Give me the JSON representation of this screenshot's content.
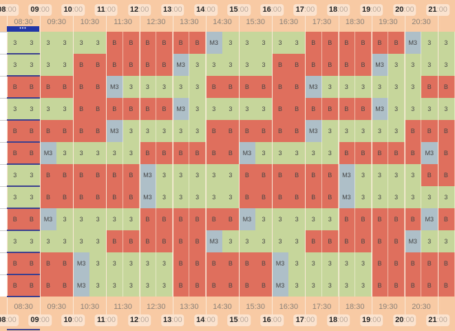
{
  "colors": {
    "3": "#c6d69b",
    "B": "#df6f5d",
    "M3": "#aebfc8",
    "header": "#f8caa4"
  },
  "hours": [
    {
      "h": "08",
      "m": ":00"
    },
    {
      "h": "09",
      "m": ":00"
    },
    {
      "h": "10",
      "m": ":00"
    },
    {
      "h": "11",
      "m": ":00"
    },
    {
      "h": "12",
      "m": ":00"
    },
    {
      "h": "13",
      "m": ":00"
    },
    {
      "h": "14",
      "m": ":00"
    },
    {
      "h": "15",
      "m": ":00"
    },
    {
      "h": "16",
      "m": ":00"
    },
    {
      "h": "17",
      "m": ":00"
    },
    {
      "h": "18",
      "m": ":00"
    },
    {
      "h": "19",
      "m": ":00"
    },
    {
      "h": "20",
      "m": ":00"
    },
    {
      "h": "21",
      "m": ":00"
    }
  ],
  "half_hours": [
    "08:30",
    "09:30",
    "10:30",
    "11:30",
    "12:30",
    "13:30",
    "14:30",
    "15:30",
    "16:30",
    "17:30",
    "18:30",
    "19:30",
    "20:30"
  ],
  "selection_marker": "•••",
  "rows": [
    [
      "3",
      "3",
      "3",
      "3",
      "3",
      "3",
      "B",
      "B",
      "B",
      "B",
      "B",
      "B",
      "M3",
      "3",
      "3",
      "3",
      "3",
      "3",
      "B",
      "B",
      "B",
      "B",
      "B",
      "B",
      "M3",
      "3",
      "3"
    ],
    [
      "3",
      "3",
      "3",
      "3",
      "B",
      "B",
      "B",
      "B",
      "B",
      "B",
      "M3",
      "3",
      "3",
      "3",
      "3",
      "3",
      "B",
      "B",
      "B",
      "B",
      "B",
      "B",
      "M3",
      "3",
      "3",
      "3",
      "3"
    ],
    [
      "B",
      "B",
      "B",
      "B",
      "B",
      "B",
      "M3",
      "3",
      "3",
      "3",
      "3",
      "3",
      "B",
      "B",
      "B",
      "B",
      "B",
      "B",
      "M3",
      "3",
      "3",
      "3",
      "3",
      "3",
      "3",
      "B",
      "B"
    ],
    [
      "3",
      "3",
      "3",
      "3",
      "B",
      "B",
      "B",
      "B",
      "B",
      "B",
      "M3",
      "3",
      "3",
      "3",
      "3",
      "3",
      "B",
      "B",
      "B",
      "B",
      "B",
      "B",
      "M3",
      "3",
      "3",
      "3",
      "3"
    ],
    [
      "B",
      "B",
      "B",
      "B",
      "B",
      "B",
      "M3",
      "3",
      "3",
      "3",
      "3",
      "3",
      "B",
      "B",
      "B",
      "B",
      "B",
      "B",
      "M3",
      "3",
      "3",
      "3",
      "3",
      "3",
      "B",
      "B",
      "B"
    ],
    [
      "B",
      "B",
      "M3",
      "3",
      "3",
      "3",
      "3",
      "3",
      "B",
      "B",
      "B",
      "B",
      "B",
      "B",
      "M3",
      "3",
      "3",
      "3",
      "3",
      "3",
      "B",
      "B",
      "B",
      "B",
      "B",
      "M3",
      "B"
    ],
    [
      "3",
      "3",
      "B",
      "B",
      "B",
      "B",
      "B",
      "B",
      "M3",
      "3",
      "3",
      "3",
      "3",
      "3",
      "B",
      "B",
      "B",
      "B",
      "B",
      "B",
      "M3",
      "3",
      "3",
      "3",
      "3",
      "B",
      "B"
    ],
    [
      "3",
      "3",
      "B",
      "B",
      "B",
      "B",
      "B",
      "B",
      "M3",
      "3",
      "3",
      "3",
      "3",
      "3",
      "B",
      "B",
      "B",
      "B",
      "B",
      "B",
      "M3",
      "3",
      "3",
      "3",
      "3",
      "3",
      "3"
    ],
    [
      "B",
      "B",
      "M3",
      "3",
      "3",
      "3",
      "3",
      "3",
      "B",
      "B",
      "B",
      "B",
      "B",
      "B",
      "M3",
      "3",
      "3",
      "3",
      "3",
      "3",
      "B",
      "B",
      "B",
      "B",
      "B",
      "M3",
      "B"
    ],
    [
      "3",
      "3",
      "3",
      "3",
      "3",
      "3",
      "B",
      "B",
      "B",
      "B",
      "B",
      "B",
      "M3",
      "3",
      "3",
      "3",
      "3",
      "3",
      "B",
      "B",
      "B",
      "B",
      "B",
      "B",
      "M3",
      "3",
      "3"
    ],
    [
      "B",
      "B",
      "B",
      "B",
      "M3",
      "3",
      "3",
      "3",
      "3",
      "3",
      "B",
      "B",
      "B",
      "B",
      "B",
      "B",
      "M3",
      "3",
      "3",
      "3",
      "3",
      "3",
      "B",
      "B",
      "B",
      "B",
      "B"
    ],
    [
      "B",
      "B",
      "B",
      "B",
      "M3",
      "3",
      "3",
      "3",
      "3",
      "3",
      "B",
      "B",
      "B",
      "B",
      "B",
      "B",
      "M3",
      "3",
      "3",
      "3",
      "3",
      "3",
      "B",
      "B",
      "B",
      "B",
      "B"
    ]
  ]
}
